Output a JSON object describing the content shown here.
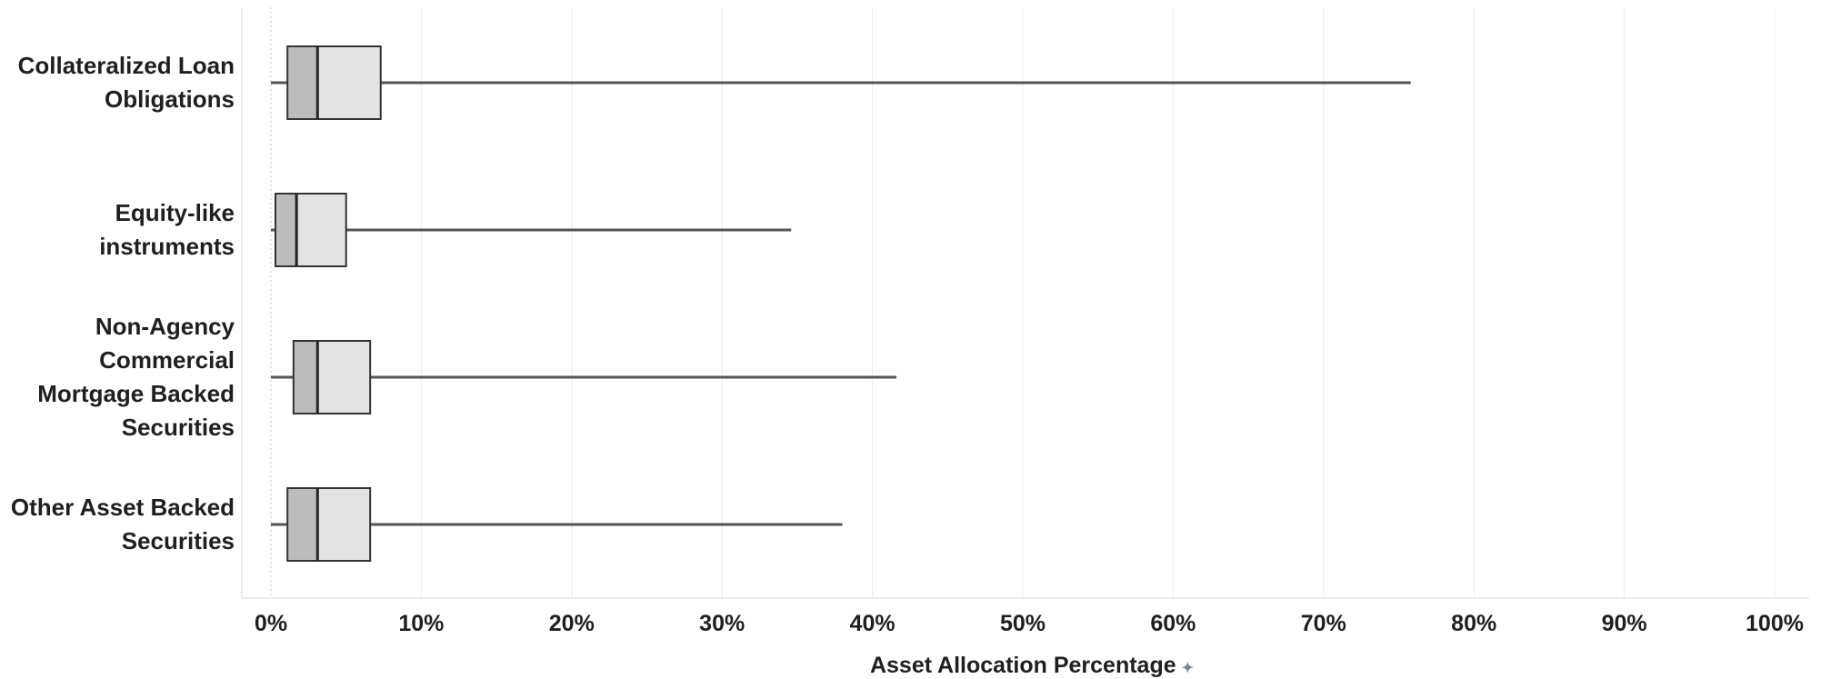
{
  "chart_data": {
    "type": "boxplot",
    "orientation": "horizontal",
    "xlabel": "Asset Allocation Percentage",
    "xlim": [
      0,
      100
    ],
    "x_ticks": [
      "0%",
      "10%",
      "20%",
      "30%",
      "40%",
      "50%",
      "60%",
      "70%",
      "80%",
      "90%",
      "100%"
    ],
    "grid": true,
    "categories": [
      {
        "label": "Collateralized Loan\nObligations",
        "min": 0.0,
        "q1": 1.1,
        "median": 3.1,
        "q3": 7.3,
        "max": 75.8
      },
      {
        "label": "Equity-like\ninstruments",
        "min": 0.0,
        "q1": 0.3,
        "median": 1.7,
        "q3": 5.0,
        "max": 34.6
      },
      {
        "label": "Non-Agency\nCommercial\nMortgage Backed\nSecurities",
        "min": 0.0,
        "q1": 1.5,
        "median": 3.1,
        "q3": 6.6,
        "max": 41.6
      },
      {
        "label": "Other Asset Backed\nSecurities",
        "min": 0.0,
        "q1": 1.1,
        "median": 3.1,
        "q3": 6.6,
        "max": 38.0
      }
    ],
    "colors": {
      "lower_box": "#bdbcbd",
      "upper_box": "#e3e3e3",
      "outline": "#333333",
      "whisker": "#555555",
      "grid": "#ebebeb"
    }
  }
}
